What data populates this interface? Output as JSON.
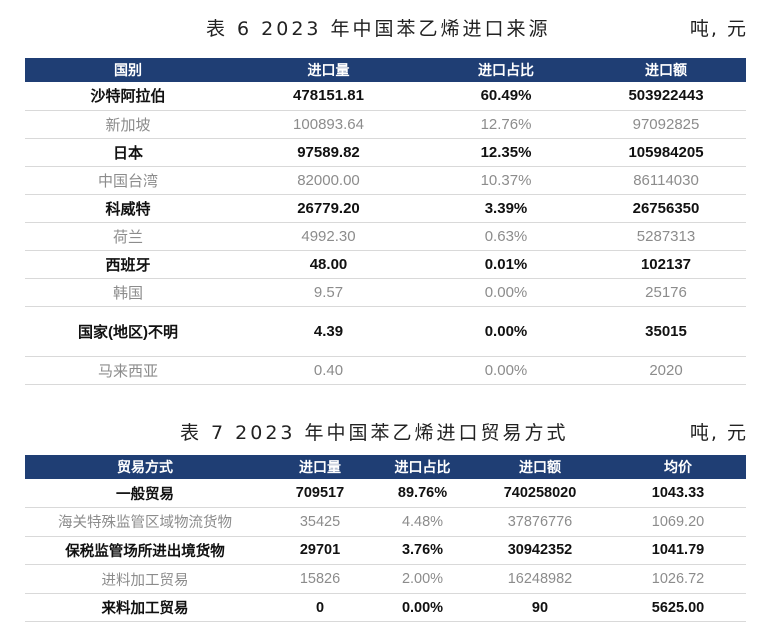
{
  "table6": {
    "caption": "表 6  2023 年中国苯乙烯进口来源",
    "unit": "吨, 元",
    "headers": [
      "国别",
      "进口量",
      "进口占比",
      "进口额"
    ],
    "rows": [
      [
        "沙特阿拉伯",
        "478151.81",
        "60.49%",
        "503922443"
      ],
      [
        "新加坡",
        "100893.64",
        "12.76%",
        "97092825"
      ],
      [
        "日本",
        "97589.82",
        "12.35%",
        "105984205"
      ],
      [
        "中国台湾",
        "82000.00",
        "10.37%",
        "86114030"
      ],
      [
        "科威特",
        "26779.20",
        "3.39%",
        "26756350"
      ],
      [
        "荷兰",
        "4992.30",
        "0.63%",
        "5287313"
      ],
      [
        "西班牙",
        "48.00",
        "0.01%",
        "102137"
      ],
      [
        "韩国",
        "9.57",
        "0.00%",
        "25176"
      ],
      [
        "国家(地区)不明",
        "4.39",
        "0.00%",
        "35015"
      ],
      [
        "马来西亚",
        "0.40",
        "0.00%",
        "2020"
      ]
    ]
  },
  "table7": {
    "caption": "表 7  2023 年中国苯乙烯进口贸易方式",
    "unit": "吨, 元",
    "headers": [
      "贸易方式",
      "进口量",
      "进口占比",
      "进口额",
      "均价"
    ],
    "rows": [
      [
        "一般贸易",
        "709517",
        "89.76%",
        "740258020",
        "1043.33"
      ],
      [
        "海关特殊监管区域物流货物",
        "35425",
        "4.48%",
        "37876776",
        "1069.20"
      ],
      [
        "保税监管场所进出境货物",
        "29701",
        "3.76%",
        "30942352",
        "1041.79"
      ],
      [
        "进料加工贸易",
        "15826",
        "2.00%",
        "16248982",
        "1026.72"
      ],
      [
        "来料加工贸易",
        "0",
        "0.00%",
        "90",
        "5625.00"
      ]
    ]
  },
  "colors": {
    "header_bg": "#1f3e74",
    "header_text": "#ffffff",
    "muted_text": "#8c8c8c",
    "strong_text": "#111111"
  }
}
